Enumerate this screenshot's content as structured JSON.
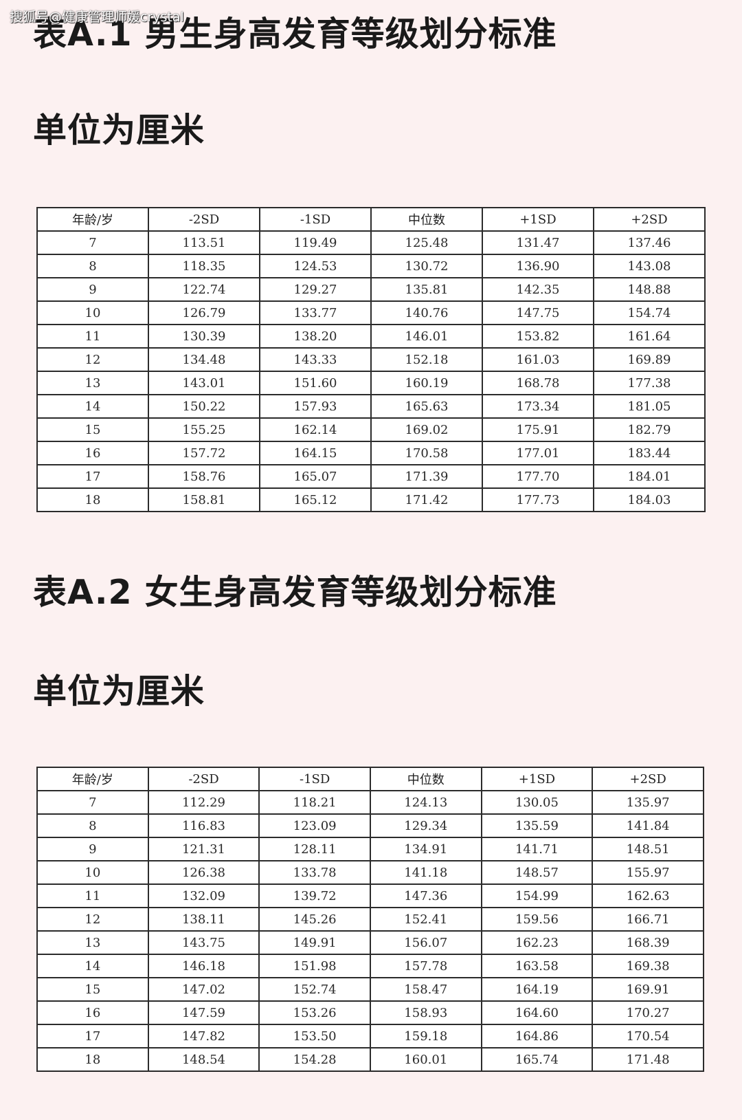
{
  "watermark": "搜狐号@健康管理师媛crystal",
  "sections": [
    {
      "title": "表A.1 男生身高发育等级划分标准",
      "unit": "单位为厘米",
      "headers": [
        "年龄/岁",
        "-2SD",
        "-1SD",
        "中位数",
        "+1SD",
        "+2SD"
      ],
      "rows": [
        [
          "7",
          "113.51",
          "119.49",
          "125.48",
          "131.47",
          "137.46"
        ],
        [
          "8",
          "118.35",
          "124.53",
          "130.72",
          "136.90",
          "143.08"
        ],
        [
          "9",
          "122.74",
          "129.27",
          "135.81",
          "142.35",
          "148.88"
        ],
        [
          "10",
          "126.79",
          "133.77",
          "140.76",
          "147.75",
          "154.74"
        ],
        [
          "11",
          "130.39",
          "138.20",
          "146.01",
          "153.82",
          "161.64"
        ],
        [
          "12",
          "134.48",
          "143.33",
          "152.18",
          "161.03",
          "169.89"
        ],
        [
          "13",
          "143.01",
          "151.60",
          "160.19",
          "168.78",
          "177.38"
        ],
        [
          "14",
          "150.22",
          "157.93",
          "165.63",
          "173.34",
          "181.05"
        ],
        [
          "15",
          "155.25",
          "162.14",
          "169.02",
          "175.91",
          "182.79"
        ],
        [
          "16",
          "157.72",
          "164.15",
          "170.58",
          "177.01",
          "183.44"
        ],
        [
          "17",
          "158.76",
          "165.07",
          "171.39",
          "177.70",
          "184.01"
        ],
        [
          "18",
          "158.81",
          "165.12",
          "171.42",
          "177.73",
          "184.03"
        ]
      ]
    },
    {
      "title": "表A.2 女生身高发育等级划分标准",
      "unit": "单位为厘米",
      "headers": [
        "年龄/岁",
        "-2SD",
        "-1SD",
        "中位数",
        "+1SD",
        "+2SD"
      ],
      "rows": [
        [
          "7",
          "112.29",
          "118.21",
          "124.13",
          "130.05",
          "135.97"
        ],
        [
          "8",
          "116.83",
          "123.09",
          "129.34",
          "135.59",
          "141.84"
        ],
        [
          "9",
          "121.31",
          "128.11",
          "134.91",
          "141.71",
          "148.51"
        ],
        [
          "10",
          "126.38",
          "133.78",
          "141.18",
          "148.57",
          "155.97"
        ],
        [
          "11",
          "132.09",
          "139.72",
          "147.36",
          "154.99",
          "162.63"
        ],
        [
          "12",
          "138.11",
          "145.26",
          "152.41",
          "159.56",
          "166.71"
        ],
        [
          "13",
          "143.75",
          "149.91",
          "156.07",
          "162.23",
          "168.39"
        ],
        [
          "14",
          "146.18",
          "151.98",
          "157.78",
          "163.58",
          "169.38"
        ],
        [
          "15",
          "147.02",
          "152.74",
          "158.47",
          "164.19",
          "169.91"
        ],
        [
          "16",
          "147.59",
          "153.26",
          "158.93",
          "164.60",
          "170.27"
        ],
        [
          "17",
          "147.82",
          "153.50",
          "159.18",
          "164.86",
          "170.54"
        ],
        [
          "18",
          "148.54",
          "154.28",
          "160.01",
          "165.74",
          "171.48"
        ]
      ]
    }
  ]
}
